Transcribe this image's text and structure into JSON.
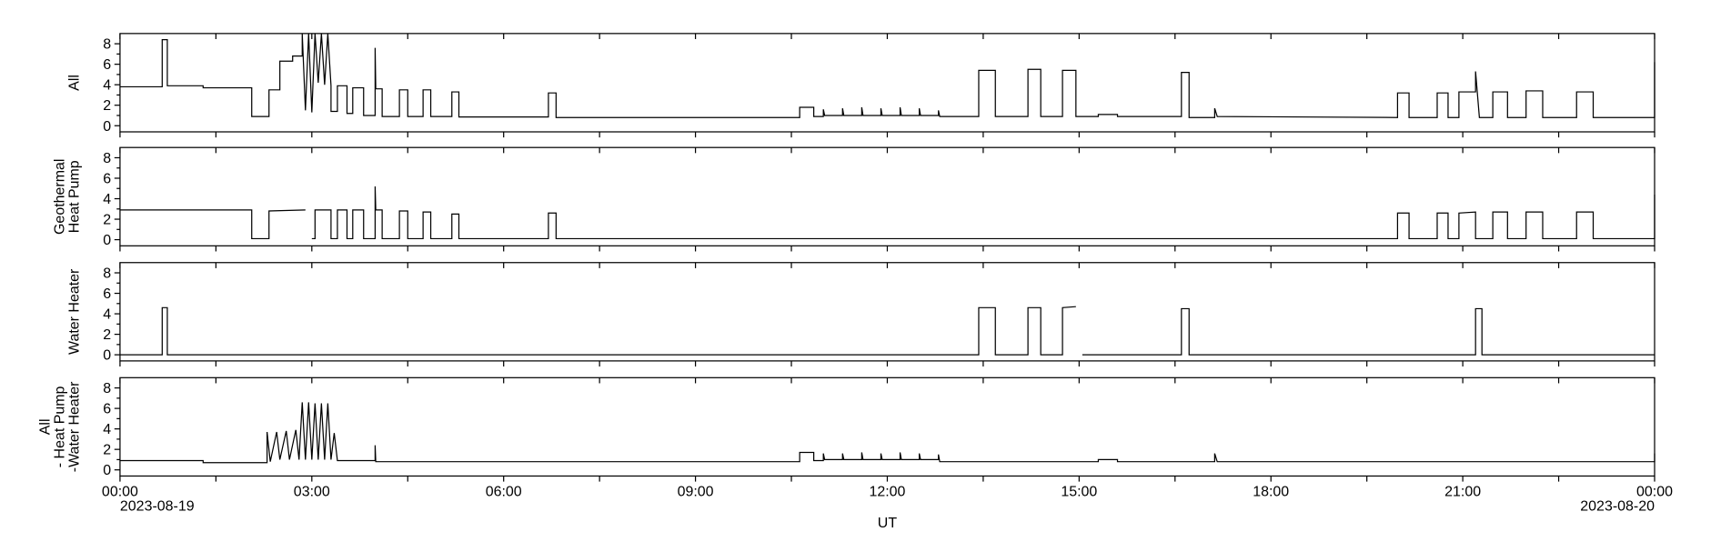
{
  "chart_data": [
    {
      "type": "line",
      "ylabel": [
        "All"
      ],
      "ylim": [
        -0.6,
        9
      ],
      "yticks": [
        0,
        2,
        4,
        6,
        8
      ],
      "yminor": [
        1,
        3,
        5,
        7
      ],
      "xlim": [
        0,
        24
      ],
      "xticks": [
        0,
        1.5,
        3,
        4.5,
        6,
        7.5,
        9,
        10.5,
        12,
        13.5,
        15,
        16.5,
        18,
        19.5,
        21,
        22.5,
        24
      ],
      "series": [
        {
          "color": "#000000",
          "x": [
            0,
            0.66,
            0.66,
            0.74,
            0.74,
            1.3,
            1.3,
            2.06,
            2.06,
            2.33,
            2.33,
            2.5,
            2.5,
            2.7,
            2.7,
            2.85,
            2.85,
            2.9,
            2.95,
            3.0,
            3.05,
            3.1,
            3.15,
            3.2,
            3.25,
            3.3,
            3.3,
            3.4,
            3.4,
            3.55,
            3.55,
            3.64,
            3.64,
            3.81,
            3.81,
            3.99,
            3.99,
            4.0,
            4.1,
            4.1,
            4.37,
            4.37,
            4.5,
            4.5,
            4.74,
            4.74,
            4.86,
            4.86,
            5.19,
            5.19,
            5.3,
            5.3,
            6.7,
            6.7,
            6.82,
            6.82,
            10.63,
            10.63,
            10.85,
            10.85,
            11.0,
            11.0,
            11.02,
            11.3,
            11.3,
            11.32,
            11.6,
            11.6,
            11.62,
            11.9,
            11.9,
            11.92,
            12.2,
            12.2,
            12.22,
            12.5,
            12.5,
            12.52,
            12.8,
            12.8,
            12.82,
            13.43,
            13.43,
            13.69,
            13.69,
            14.2,
            14.2,
            14.4,
            14.4,
            14.74,
            14.74,
            14.95,
            14.95,
            15.3,
            15.3,
            15.6,
            15.6,
            16.6,
            16.6,
            16.72,
            16.72,
            17.12,
            17.12,
            17.16,
            19.98,
            19.98,
            20.16,
            20.16,
            20.6,
            20.6,
            20.77,
            20.77,
            20.94,
            20.94,
            21.2,
            21.2,
            21.26,
            21.47,
            21.47,
            21.7,
            21.7,
            21.99,
            21.99,
            22.25,
            22.25,
            22.78,
            22.78,
            23.04,
            23.04,
            24,
            24
          ],
          "values": [
            3.8,
            3.8,
            8.4,
            8.4,
            3.9,
            3.9,
            3.7,
            3.7,
            0.9,
            0.9,
            3.5,
            3.5,
            6.3,
            6.3,
            6.8,
            6.8,
            9,
            1.5,
            9,
            1.3,
            9,
            4.2,
            9,
            4.0,
            9,
            3.9,
            1.4,
            1.4,
            3.9,
            3.9,
            1.2,
            1.2,
            3.7,
            3.7,
            1.0,
            1.0,
            7.6,
            3.6,
            3.6,
            0.9,
            0.9,
            3.5,
            3.5,
            0.9,
            0.9,
            3.5,
            3.5,
            0.9,
            0.9,
            3.3,
            3.3,
            0.85,
            0.85,
            3.2,
            3.2,
            0.8,
            0.8,
            1.8,
            1.8,
            0.9,
            0.9,
            1.6,
            1.0,
            1.0,
            1.7,
            1.0,
            1.0,
            1.8,
            1.0,
            1.0,
            1.7,
            1.0,
            1.0,
            1.8,
            1.0,
            1.0,
            1.7,
            1.0,
            1.0,
            1.5,
            0.9,
            0.9,
            5.4,
            5.4,
            0.9,
            0.9,
            5.5,
            5.5,
            0.9,
            0.9,
            5.4,
            5.4,
            0.9,
            0.9,
            1.1,
            1.1,
            0.9,
            0.9,
            5.2,
            5.2,
            0.8,
            0.8,
            1.7,
            0.9,
            0.8,
            3.2,
            3.2,
            0.8,
            0.8,
            3.2,
            3.2,
            0.8,
            0.8,
            3.3,
            3.3,
            5.3,
            0.8,
            0.8,
            3.3,
            3.3,
            0.8,
            0.8,
            3.4,
            3.4,
            0.8,
            0.8,
            3.3,
            3.3,
            0.8,
            0.8,
            6.2
          ]
        }
      ]
    },
    {
      "type": "line",
      "ylabel": [
        "Geothermal",
        "Heat Pump"
      ],
      "ylim": [
        -0.6,
        9
      ],
      "yticks": [
        0,
        2,
        4,
        6,
        8
      ],
      "yminor": [
        1,
        3,
        5,
        7
      ],
      "xlim": [
        0,
        24
      ],
      "xticks": [
        0,
        1.5,
        3,
        4.5,
        6,
        7.5,
        9,
        10.5,
        12,
        13.5,
        15,
        16.5,
        18,
        19.5,
        21,
        22.5,
        24
      ],
      "series": [
        {
          "color": "#000000",
          "x": [
            0,
            2.06,
            2.06,
            2.33,
            2.33,
            2.9,
            2.95,
            3.0,
            3.05,
            3.05,
            3.3,
            3.3,
            3.4,
            3.4,
            3.55,
            3.55,
            3.64,
            3.64,
            3.81,
            3.81,
            3.99,
            3.99,
            4.0,
            4.1,
            4.1,
            4.37,
            4.37,
            4.5,
            4.5,
            4.74,
            4.74,
            4.86,
            4.86,
            5.19,
            5.19,
            5.3,
            5.3,
            6.7,
            6.7,
            6.82,
            6.82,
            19.98,
            19.98,
            20.16,
            20.16,
            20.6,
            20.6,
            20.77,
            20.77,
            20.94,
            20.94,
            21.2,
            21.2,
            21.47,
            21.47,
            21.7,
            21.7,
            21.99,
            21.99,
            22.25,
            22.25,
            22.78,
            22.78,
            23.04,
            23.04,
            24,
            24
          ],
          "values": [
            2.9,
            2.9,
            0.1,
            0.1,
            2.8,
            2.9,
            null,
            0.1,
            0.1,
            2.9,
            2.9,
            0.1,
            0.1,
            2.9,
            2.9,
            0.1,
            0.1,
            2.9,
            2.9,
            0.1,
            0.1,
            5.2,
            2.9,
            2.9,
            0.1,
            0.1,
            2.8,
            2.8,
            0.1,
            0.1,
            2.7,
            2.7,
            0.1,
            0.1,
            2.5,
            2.5,
            0.1,
            0.1,
            2.6,
            2.6,
            0.1,
            0.1,
            2.6,
            2.6,
            0.1,
            0.1,
            2.6,
            2.6,
            0.1,
            0.1,
            2.6,
            2.7,
            0.1,
            0.1,
            2.7,
            2.7,
            0.1,
            0.1,
            2.7,
            2.7,
            0.1,
            0.1,
            2.7,
            2.7,
            0.1,
            0.1,
            4.4
          ]
        }
      ]
    },
    {
      "type": "line",
      "ylabel": [
        "Water Heater"
      ],
      "ylim": [
        -0.6,
        9
      ],
      "yticks": [
        0,
        2,
        4,
        6,
        8
      ],
      "yminor": [
        1,
        3,
        5,
        7
      ],
      "xlim": [
        0,
        24
      ],
      "xticks": [
        0,
        1.5,
        3,
        4.5,
        6,
        7.5,
        9,
        10.5,
        12,
        13.5,
        15,
        16.5,
        18,
        19.5,
        21,
        22.5,
        24
      ],
      "series": [
        {
          "color": "#000000",
          "x": [
            0,
            0.66,
            0.66,
            0.74,
            0.74,
            13.43,
            13.43,
            13.69,
            13.69,
            14.2,
            14.2,
            14.4,
            14.4,
            14.74,
            14.74,
            14.95,
            15.0,
            15.05,
            16.6,
            16.6,
            16.72,
            16.72,
            21.2,
            21.2,
            21.3,
            21.3,
            24
          ],
          "values": [
            0,
            0,
            4.6,
            4.6,
            0,
            0,
            4.6,
            4.6,
            0,
            0,
            4.6,
            4.6,
            0,
            0,
            4.6,
            4.7,
            null,
            0,
            0,
            4.5,
            4.5,
            0,
            0,
            4.5,
            4.5,
            0,
            0
          ]
        }
      ]
    },
    {
      "type": "line",
      "ylabel": [
        "All",
        "- Heat Pump",
        "-Water Heater"
      ],
      "ylim": [
        -0.6,
        9
      ],
      "yticks": [
        0,
        2,
        4,
        6,
        8
      ],
      "yminor": [
        1,
        3,
        5,
        7
      ],
      "xlim": [
        0,
        24
      ],
      "xticks": [
        {
          "value": 0,
          "label": "00:00"
        },
        1.5,
        {
          "value": 3,
          "label": "03:00"
        },
        4.5,
        {
          "value": 6,
          "label": "06:00"
        },
        7.5,
        {
          "value": 9,
          "label": "09:00"
        },
        10.5,
        {
          "value": 12,
          "label": "12:00"
        },
        13.5,
        {
          "value": 15,
          "label": "15:00"
        },
        16.5,
        {
          "value": 18,
          "label": "18:00"
        },
        19.5,
        {
          "value": 21,
          "label": "21:00"
        },
        22.5,
        {
          "value": 24,
          "label": "00:00"
        }
      ],
      "x_dates": [
        {
          "value": 0,
          "label": "2023-08-19"
        },
        {
          "value": 24,
          "label": "2023-08-20"
        }
      ],
      "xlabel": "UT",
      "series": [
        {
          "color": "#000000",
          "x": [
            0,
            1.3,
            1.3,
            2.3,
            2.3,
            2.35,
            2.45,
            2.5,
            2.6,
            2.65,
            2.75,
            2.8,
            2.85,
            2.9,
            2.95,
            3.0,
            3.05,
            3.1,
            3.15,
            3.2,
            3.25,
            3.3,
            3.35,
            3.4,
            3.99,
            3.99,
            4.0,
            10.63,
            10.63,
            10.85,
            10.85,
            11.0,
            11.0,
            11.02,
            11.3,
            11.3,
            11.32,
            11.6,
            11.6,
            11.62,
            11.9,
            11.9,
            11.92,
            12.2,
            12.2,
            12.22,
            12.5,
            12.5,
            12.52,
            12.8,
            12.8,
            12.82,
            15.3,
            15.3,
            15.6,
            15.6,
            17.12,
            17.12,
            17.16,
            24,
            24
          ],
          "values": [
            0.9,
            0.9,
            0.7,
            0.7,
            3.7,
            0.8,
            3.7,
            1.0,
            3.8,
            1.0,
            3.9,
            1.0,
            6.6,
            1.0,
            6.6,
            1.0,
            6.5,
            1.0,
            6.5,
            1.0,
            6.5,
            1.0,
            3.6,
            0.9,
            0.9,
            2.4,
            0.8,
            0.8,
            1.7,
            1.7,
            0.9,
            0.9,
            1.6,
            1.0,
            1.0,
            1.6,
            1.0,
            1.0,
            1.7,
            1.0,
            1.0,
            1.6,
            1.0,
            1.0,
            1.7,
            1.0,
            1.0,
            1.6,
            1.0,
            1.0,
            1.5,
            0.8,
            0.8,
            1.0,
            1.0,
            0.8,
            0.8,
            1.6,
            0.8,
            0.8,
            1.6
          ]
        }
      ]
    }
  ]
}
